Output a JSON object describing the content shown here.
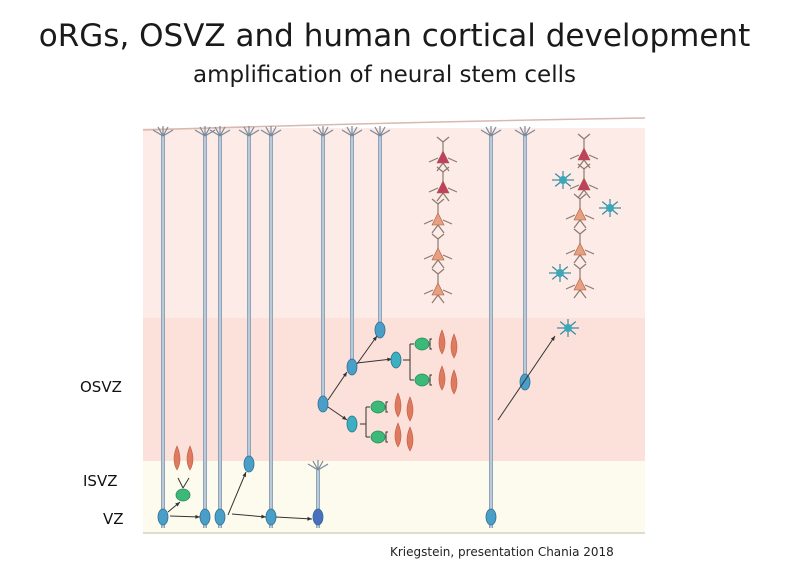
{
  "slide": {
    "title": "oRGs, OSVZ and human cortical development",
    "subtitle": "amplification of neural stem cells",
    "zones": {
      "osvz": "OSVZ",
      "isvz": "ISVZ",
      "vz": "VZ"
    },
    "caption": "Kriegstein, presentation Chania 2018"
  },
  "colors": {
    "radial_glia": "#4a9fc8",
    "intermediate_progenitor": "#3cb878",
    "neuron": "#e07a5f",
    "astrocyte": "#3aa8b8",
    "cortex_bg": "#fcebe6",
    "osvz_bg": "#fbe1d9",
    "isvz_bg": "#fdfbee"
  }
}
